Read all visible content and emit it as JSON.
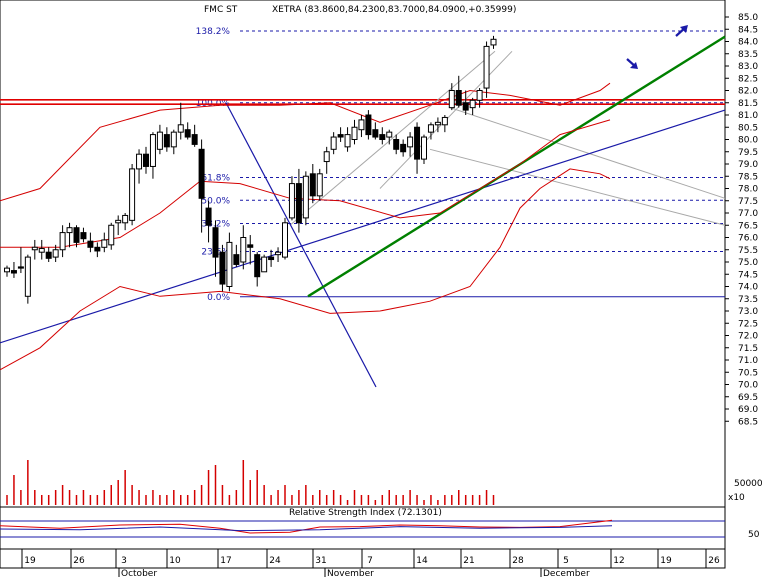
{
  "header": {
    "symbol": "FMC ST",
    "quote": "XETRA (83.8600,84.2300,83.7000,84.0900,+0.35999)"
  },
  "rsi_label": "Relative Strength Index (72.1301)",
  "colors": {
    "bullish_candle": "#ffffff",
    "bearish_candle": "#000000",
    "bollinger": "#d40000",
    "volume": "#d40000",
    "fib_lines": "#1a1aa8",
    "trend_green": "#008000",
    "trend_blue": "#1a1aa8",
    "resistance": "#e00000",
    "channel": "#a8a8a8"
  },
  "icons": [
    "arrow-up-right-icon",
    "arrow-down-right-icon"
  ],
  "chart_data": {
    "type": "candlestick",
    "y_axis": {
      "min": 68.5,
      "max": 85.0,
      "step": 0.5,
      "tick_labels": [
        "85.0",
        "84.5",
        "84.0",
        "83.5",
        "83.0",
        "82.5",
        "82.0",
        "81.5",
        "81.0",
        "80.5",
        "80.0",
        "79.5",
        "79.0",
        "78.5",
        "78.0",
        "77.5",
        "77.0",
        "76.5",
        "76.0",
        "75.5",
        "75.0",
        "74.5",
        "74.0",
        "73.5",
        "73.0",
        "72.5",
        "72.0",
        "71.5",
        "71.0",
        "70.5",
        "70.0",
        "69.5",
        "69.0",
        "68.5"
      ]
    },
    "x_axis": {
      "day_labels": [
        "19",
        "26",
        "3",
        "10",
        "17",
        "24",
        "31",
        "7",
        "14",
        "21",
        "28",
        "5",
        "12",
        "19",
        "26"
      ],
      "month_labels": [
        "October",
        "November",
        "December"
      ]
    },
    "fibonacci": [
      {
        "label": "138.2%",
        "value": 84.43
      },
      {
        "label": "100.0%",
        "value": 81.5
      },
      {
        "label": "61.8%",
        "value": 78.45
      },
      {
        "label": "50.0%",
        "value": 77.52
      },
      {
        "label": "38.2%",
        "value": 76.57
      },
      {
        "label": "23.6%",
        "value": 75.43
      },
      {
        "label": "0.0%",
        "value": 73.58
      }
    ],
    "resistance_levels": [
      81.62,
      81.44
    ],
    "candles": [
      {
        "o": 74.6,
        "h": 74.85,
        "l": 74.4,
        "c": 74.75
      },
      {
        "o": 74.65,
        "h": 75.0,
        "l": 74.35,
        "c": 74.55
      },
      {
        "o": 74.8,
        "h": 75.6,
        "l": 74.55,
        "c": 74.75
      },
      {
        "o": 73.6,
        "h": 75.3,
        "l": 73.3,
        "c": 75.2
      },
      {
        "o": 75.5,
        "h": 75.9,
        "l": 75.1,
        "c": 75.6
      },
      {
        "o": 75.4,
        "h": 75.9,
        "l": 75.1,
        "c": 75.55
      },
      {
        "o": 75.4,
        "h": 75.6,
        "l": 75.0,
        "c": 75.15
      },
      {
        "o": 75.2,
        "h": 75.7,
        "l": 75.0,
        "c": 75.5
      },
      {
        "o": 75.5,
        "h": 76.5,
        "l": 75.2,
        "c": 76.2
      },
      {
        "o": 76.2,
        "h": 76.6,
        "l": 75.6,
        "c": 76.4
      },
      {
        "o": 76.4,
        "h": 76.5,
        "l": 75.6,
        "c": 75.8
      },
      {
        "o": 76.2,
        "h": 76.4,
        "l": 75.8,
        "c": 75.95
      },
      {
        "o": 75.85,
        "h": 76.2,
        "l": 75.4,
        "c": 75.6
      },
      {
        "o": 75.6,
        "h": 75.8,
        "l": 75.2,
        "c": 75.45
      },
      {
        "o": 75.6,
        "h": 76.2,
        "l": 75.4,
        "c": 75.9
      },
      {
        "o": 75.7,
        "h": 76.6,
        "l": 75.5,
        "c": 76.5
      },
      {
        "o": 76.6,
        "h": 76.9,
        "l": 76.1,
        "c": 76.7
      },
      {
        "o": 76.6,
        "h": 77.0,
        "l": 76.3,
        "c": 76.9
      },
      {
        "o": 76.7,
        "h": 79.0,
        "l": 76.5,
        "c": 78.8
      },
      {
        "o": 78.8,
        "h": 79.6,
        "l": 78.2,
        "c": 79.4
      },
      {
        "o": 79.4,
        "h": 79.7,
        "l": 78.6,
        "c": 78.9
      },
      {
        "o": 78.9,
        "h": 80.3,
        "l": 78.4,
        "c": 80.2
      },
      {
        "o": 79.6,
        "h": 80.6,
        "l": 79.4,
        "c": 80.3
      },
      {
        "o": 80.2,
        "h": 80.5,
        "l": 79.5,
        "c": 79.7
      },
      {
        "o": 79.7,
        "h": 80.4,
        "l": 79.4,
        "c": 80.3
      },
      {
        "o": 80.3,
        "h": 81.5,
        "l": 80.0,
        "c": 80.6
      },
      {
        "o": 80.4,
        "h": 80.7,
        "l": 80.0,
        "c": 80.1
      },
      {
        "o": 80.2,
        "h": 80.6,
        "l": 79.7,
        "c": 79.8
      },
      {
        "o": 79.6,
        "h": 80.0,
        "l": 76.2,
        "c": 77.6
      },
      {
        "o": 77.2,
        "h": 77.5,
        "l": 75.8,
        "c": 76.5
      },
      {
        "o": 76.4,
        "h": 76.7,
        "l": 74.4,
        "c": 75.2
      },
      {
        "o": 75.4,
        "h": 75.7,
        "l": 73.8,
        "c": 74.1
      },
      {
        "o": 74.0,
        "h": 76.2,
        "l": 73.8,
        "c": 75.8
      },
      {
        "o": 75.3,
        "h": 75.7,
        "l": 74.8,
        "c": 74.9
      },
      {
        "o": 75.0,
        "h": 76.5,
        "l": 74.7,
        "c": 76.0
      },
      {
        "o": 75.7,
        "h": 76.1,
        "l": 74.9,
        "c": 75.6
      },
      {
        "o": 75.3,
        "h": 75.4,
        "l": 74.0,
        "c": 74.4
      },
      {
        "o": 74.6,
        "h": 75.3,
        "l": 74.6,
        "c": 75.2
      },
      {
        "o": 75.2,
        "h": 75.5,
        "l": 74.8,
        "c": 75.1
      },
      {
        "o": 75.3,
        "h": 75.6,
        "l": 75.0,
        "c": 75.4
      },
      {
        "o": 75.2,
        "h": 76.8,
        "l": 75.1,
        "c": 76.6
      },
      {
        "o": 76.8,
        "h": 78.5,
        "l": 76.7,
        "c": 78.2
      },
      {
        "o": 78.2,
        "h": 78.8,
        "l": 76.2,
        "c": 76.6
      },
      {
        "o": 76.8,
        "h": 78.7,
        "l": 76.5,
        "c": 78.5
      },
      {
        "o": 78.6,
        "h": 79.0,
        "l": 77.4,
        "c": 77.7
      },
      {
        "o": 77.7,
        "h": 78.8,
        "l": 77.5,
        "c": 78.6
      },
      {
        "o": 79.1,
        "h": 79.7,
        "l": 78.6,
        "c": 79.5
      },
      {
        "o": 79.6,
        "h": 80.3,
        "l": 79.4,
        "c": 80.1
      },
      {
        "o": 80.2,
        "h": 80.5,
        "l": 79.9,
        "c": 80.1
      },
      {
        "o": 79.7,
        "h": 80.5,
        "l": 79.5,
        "c": 80.2
      },
      {
        "o": 80.0,
        "h": 80.8,
        "l": 79.8,
        "c": 80.5
      },
      {
        "o": 80.4,
        "h": 81.0,
        "l": 80.1,
        "c": 80.8
      },
      {
        "o": 81.0,
        "h": 81.2,
        "l": 80.0,
        "c": 80.2
      },
      {
        "o": 80.4,
        "h": 80.7,
        "l": 80.0,
        "c": 80.1
      },
      {
        "o": 80.2,
        "h": 80.5,
        "l": 79.8,
        "c": 80.0
      },
      {
        "o": 80.1,
        "h": 80.4,
        "l": 79.8,
        "c": 80.3
      },
      {
        "o": 80.0,
        "h": 80.2,
        "l": 79.4,
        "c": 79.6
      },
      {
        "o": 79.8,
        "h": 80.0,
        "l": 79.3,
        "c": 79.5
      },
      {
        "o": 79.7,
        "h": 80.3,
        "l": 79.3,
        "c": 80.1
      },
      {
        "o": 80.5,
        "h": 80.7,
        "l": 78.6,
        "c": 79.2
      },
      {
        "o": 79.2,
        "h": 80.2,
        "l": 79.0,
        "c": 80.1
      },
      {
        "o": 80.3,
        "h": 80.7,
        "l": 80.0,
        "c": 80.6
      },
      {
        "o": 80.6,
        "h": 80.9,
        "l": 80.3,
        "c": 80.7
      },
      {
        "o": 80.6,
        "h": 81.0,
        "l": 80.3,
        "c": 80.9
      },
      {
        "o": 81.3,
        "h": 82.3,
        "l": 81.2,
        "c": 82.0
      },
      {
        "o": 82.0,
        "h": 82.6,
        "l": 81.3,
        "c": 81.4
      },
      {
        "o": 81.5,
        "h": 82.0,
        "l": 81.0,
        "c": 81.2
      },
      {
        "o": 81.3,
        "h": 81.7,
        "l": 81.0,
        "c": 81.6
      },
      {
        "o": 81.6,
        "h": 82.1,
        "l": 81.3,
        "c": 82.0
      },
      {
        "o": 82.1,
        "h": 84.0,
        "l": 81.7,
        "c": 83.8
      },
      {
        "o": 83.86,
        "h": 84.23,
        "l": 83.7,
        "c": 84.09
      }
    ],
    "volume": [
      2,
      6,
      3,
      9,
      3,
      2,
      2,
      3,
      4,
      3,
      2,
      3,
      2,
      2,
      3,
      4,
      5,
      7,
      4,
      3,
      2,
      3,
      2,
      2,
      3,
      2,
      2,
      3,
      4,
      7,
      8,
      4,
      2,
      3,
      9,
      5,
      7,
      4,
      2,
      3,
      4,
      2,
      3,
      4,
      2,
      3,
      2,
      3,
      2,
      1,
      3,
      2,
      2,
      1,
      2,
      3,
      2,
      2,
      3,
      2,
      1,
      2,
      1,
      2,
      2,
      3,
      2,
      2,
      2,
      3,
      2
    ],
    "volume_scale_label": "50000",
    "volume_unit_label": "x10",
    "rsi_scale_label": "50"
  }
}
